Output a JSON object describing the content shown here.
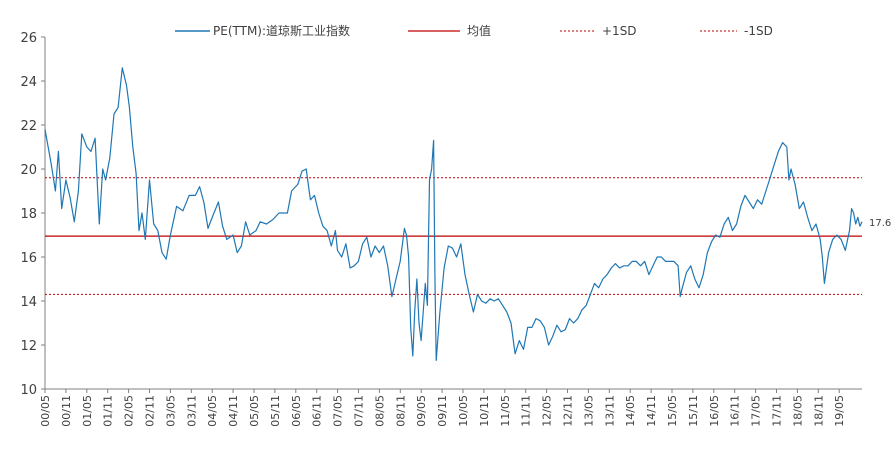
{
  "chart_data": {
    "type": "line",
    "title": "",
    "xlabel": "",
    "ylabel": "",
    "ylim": [
      10,
      26
    ],
    "yticks": [
      10,
      12,
      14,
      16,
      18,
      20,
      22,
      24,
      26
    ],
    "grid": false,
    "legend_position": "top",
    "colors": {
      "pe": "#1f77b4",
      "mean": "#c00000",
      "sd": "#c00000",
      "axis": "#808080",
      "text": "#404040"
    },
    "legend": [
      {
        "key": "pe",
        "label": "PE(TTM):道琼斯工业指数"
      },
      {
        "key": "mean",
        "label": "均值"
      },
      {
        "key": "plus_sd",
        "label": "+1SD"
      },
      {
        "key": "minus_sd",
        "label": "-1SD"
      }
    ],
    "x_ticks": [
      "00/05",
      "00/11",
      "01/05",
      "01/11",
      "02/05",
      "02/11",
      "03/05",
      "03/11",
      "04/05",
      "04/11",
      "05/05",
      "05/11",
      "06/05",
      "06/11",
      "07/05",
      "07/11",
      "08/05",
      "08/11",
      "09/05",
      "09/11",
      "10/05",
      "10/11",
      "11/05",
      "11/11",
      "12/05",
      "12/11",
      "13/05",
      "13/11",
      "14/05",
      "14/11",
      "15/05",
      "15/11",
      "16/05",
      "16/11",
      "17/05",
      "17/11",
      "18/05",
      "18/11",
      "19/05"
    ],
    "x_start": 2000.3,
    "x_end": 2019.85,
    "mean": 16.95,
    "plus_1sd": 19.6,
    "minus_1sd": 14.3,
    "last_value_label": "17.6",
    "series": [
      {
        "name": "PE(TTM):道琼斯工业指数",
        "points": [
          [
            2000.3,
            21.8
          ],
          [
            2000.45,
            20.2
          ],
          [
            2000.55,
            19.0
          ],
          [
            2000.62,
            20.8
          ],
          [
            2000.7,
            18.2
          ],
          [
            2000.8,
            19.5
          ],
          [
            2000.9,
            18.7
          ],
          [
            2001.0,
            17.6
          ],
          [
            2001.1,
            19.0
          ],
          [
            2001.18,
            21.6
          ],
          [
            2001.3,
            21.0
          ],
          [
            2001.4,
            20.8
          ],
          [
            2001.5,
            21.4
          ],
          [
            2001.6,
            17.5
          ],
          [
            2001.68,
            20.0
          ],
          [
            2001.75,
            19.5
          ],
          [
            2001.85,
            20.5
          ],
          [
            2001.95,
            22.5
          ],
          [
            2002.05,
            22.8
          ],
          [
            2002.15,
            24.6
          ],
          [
            2002.25,
            23.8
          ],
          [
            2002.32,
            22.8
          ],
          [
            2002.4,
            21.0
          ],
          [
            2002.48,
            19.8
          ],
          [
            2002.55,
            17.2
          ],
          [
            2002.62,
            18.0
          ],
          [
            2002.7,
            16.8
          ],
          [
            2002.8,
            19.5
          ],
          [
            2002.9,
            17.5
          ],
          [
            2003.0,
            17.2
          ],
          [
            2003.1,
            16.2
          ],
          [
            2003.2,
            15.9
          ],
          [
            2003.3,
            17.0
          ],
          [
            2003.45,
            18.3
          ],
          [
            2003.6,
            18.1
          ],
          [
            2003.75,
            18.8
          ],
          [
            2003.9,
            18.8
          ],
          [
            2004.0,
            19.2
          ],
          [
            2004.1,
            18.5
          ],
          [
            2004.2,
            17.3
          ],
          [
            2004.3,
            17.8
          ],
          [
            2004.45,
            18.5
          ],
          [
            2004.55,
            17.4
          ],
          [
            2004.65,
            16.8
          ],
          [
            2004.8,
            17.0
          ],
          [
            2004.9,
            16.2
          ],
          [
            2005.0,
            16.5
          ],
          [
            2005.1,
            17.6
          ],
          [
            2005.2,
            17.0
          ],
          [
            2005.35,
            17.2
          ],
          [
            2005.45,
            17.6
          ],
          [
            2005.6,
            17.5
          ],
          [
            2005.75,
            17.7
          ],
          [
            2005.9,
            18.0
          ],
          [
            2006.0,
            18.0
          ],
          [
            2006.1,
            18.0
          ],
          [
            2006.2,
            19.0
          ],
          [
            2006.35,
            19.3
          ],
          [
            2006.45,
            19.9
          ],
          [
            2006.55,
            20.0
          ],
          [
            2006.65,
            18.6
          ],
          [
            2006.75,
            18.8
          ],
          [
            2006.85,
            18.0
          ],
          [
            2006.95,
            17.4
          ],
          [
            2007.05,
            17.2
          ],
          [
            2007.15,
            16.5
          ],
          [
            2007.25,
            17.2
          ],
          [
            2007.3,
            16.3
          ],
          [
            2007.4,
            16.0
          ],
          [
            2007.5,
            16.6
          ],
          [
            2007.6,
            15.5
          ],
          [
            2007.7,
            15.6
          ],
          [
            2007.8,
            15.8
          ],
          [
            2007.9,
            16.6
          ],
          [
            2008.0,
            16.9
          ],
          [
            2008.1,
            16.0
          ],
          [
            2008.2,
            16.5
          ],
          [
            2008.3,
            16.2
          ],
          [
            2008.4,
            16.5
          ],
          [
            2008.5,
            15.6
          ],
          [
            2008.6,
            14.2
          ],
          [
            2008.7,
            15.0
          ],
          [
            2008.8,
            15.8
          ],
          [
            2008.9,
            17.3
          ],
          [
            2008.95,
            17.0
          ],
          [
            2009.0,
            16.0
          ],
          [
            2009.05,
            12.8
          ],
          [
            2009.1,
            11.5
          ],
          [
            2009.15,
            13.6
          ],
          [
            2009.2,
            15.0
          ],
          [
            2009.25,
            13.0
          ],
          [
            2009.3,
            12.2
          ],
          [
            2009.35,
            13.5
          ],
          [
            2009.4,
            14.8
          ],
          [
            2009.45,
            13.8
          ],
          [
            2009.5,
            19.5
          ],
          [
            2009.55,
            20.0
          ],
          [
            2009.6,
            21.3
          ],
          [
            2009.63,
            15.2
          ],
          [
            2009.66,
            11.3
          ],
          [
            2009.75,
            13.5
          ],
          [
            2009.85,
            15.5
          ],
          [
            2009.95,
            16.5
          ],
          [
            2010.05,
            16.4
          ],
          [
            2010.15,
            16.0
          ],
          [
            2010.25,
            16.6
          ],
          [
            2010.35,
            15.2
          ],
          [
            2010.45,
            14.3
          ],
          [
            2010.55,
            13.5
          ],
          [
            2010.65,
            14.3
          ],
          [
            2010.75,
            14.0
          ],
          [
            2010.85,
            13.9
          ],
          [
            2010.95,
            14.1
          ],
          [
            2011.05,
            14.0
          ],
          [
            2011.15,
            14.1
          ],
          [
            2011.25,
            13.8
          ],
          [
            2011.35,
            13.5
          ],
          [
            2011.45,
            13.0
          ],
          [
            2011.55,
            11.6
          ],
          [
            2011.65,
            12.2
          ],
          [
            2011.75,
            11.8
          ],
          [
            2011.85,
            12.8
          ],
          [
            2011.95,
            12.8
          ],
          [
            2012.05,
            13.2
          ],
          [
            2012.15,
            13.1
          ],
          [
            2012.25,
            12.8
          ],
          [
            2012.35,
            12.0
          ],
          [
            2012.45,
            12.4
          ],
          [
            2012.55,
            12.9
          ],
          [
            2012.65,
            12.6
          ],
          [
            2012.75,
            12.7
          ],
          [
            2012.85,
            13.2
          ],
          [
            2012.95,
            13.0
          ],
          [
            2013.05,
            13.2
          ],
          [
            2013.15,
            13.6
          ],
          [
            2013.25,
            13.8
          ],
          [
            2013.35,
            14.3
          ],
          [
            2013.45,
            14.8
          ],
          [
            2013.55,
            14.6
          ],
          [
            2013.65,
            15.0
          ],
          [
            2013.75,
            15.2
          ],
          [
            2013.85,
            15.5
          ],
          [
            2013.95,
            15.7
          ],
          [
            2014.05,
            15.5
          ],
          [
            2014.15,
            15.6
          ],
          [
            2014.25,
            15.6
          ],
          [
            2014.35,
            15.8
          ],
          [
            2014.45,
            15.8
          ],
          [
            2014.55,
            15.6
          ],
          [
            2014.65,
            15.8
          ],
          [
            2014.75,
            15.2
          ],
          [
            2014.85,
            15.6
          ],
          [
            2014.95,
            16.0
          ],
          [
            2015.05,
            16.0
          ],
          [
            2015.15,
            15.8
          ],
          [
            2015.25,
            15.8
          ],
          [
            2015.35,
            15.8
          ],
          [
            2015.45,
            15.6
          ],
          [
            2015.5,
            14.2
          ],
          [
            2015.55,
            14.6
          ],
          [
            2015.65,
            15.3
          ],
          [
            2015.75,
            15.6
          ],
          [
            2015.85,
            15.0
          ],
          [
            2015.95,
            14.6
          ],
          [
            2016.05,
            15.2
          ],
          [
            2016.15,
            16.2
          ],
          [
            2016.25,
            16.7
          ],
          [
            2016.35,
            17.0
          ],
          [
            2016.45,
            16.9
          ],
          [
            2016.55,
            17.5
          ],
          [
            2016.65,
            17.8
          ],
          [
            2016.75,
            17.2
          ],
          [
            2016.85,
            17.5
          ],
          [
            2016.95,
            18.3
          ],
          [
            2017.05,
            18.8
          ],
          [
            2017.15,
            18.5
          ],
          [
            2017.25,
            18.2
          ],
          [
            2017.35,
            18.6
          ],
          [
            2017.45,
            18.4
          ],
          [
            2017.55,
            19.0
          ],
          [
            2017.65,
            19.6
          ],
          [
            2017.75,
            20.2
          ],
          [
            2017.85,
            20.8
          ],
          [
            2017.95,
            21.2
          ],
          [
            2018.05,
            21.0
          ],
          [
            2018.1,
            19.5
          ],
          [
            2018.15,
            20.0
          ],
          [
            2018.25,
            19.3
          ],
          [
            2018.35,
            18.2
          ],
          [
            2018.45,
            18.5
          ],
          [
            2018.55,
            17.8
          ],
          [
            2018.65,
            17.2
          ],
          [
            2018.75,
            17.5
          ],
          [
            2018.85,
            16.8
          ],
          [
            2018.9,
            16.0
          ],
          [
            2018.95,
            14.8
          ],
          [
            2019.0,
            15.5
          ],
          [
            2019.05,
            16.2
          ],
          [
            2019.15,
            16.8
          ],
          [
            2019.25,
            17.0
          ],
          [
            2019.35,
            16.8
          ],
          [
            2019.45,
            16.3
          ],
          [
            2019.55,
            17.2
          ],
          [
            2019.6,
            18.2
          ],
          [
            2019.65,
            18.0
          ],
          [
            2019.7,
            17.5
          ],
          [
            2019.75,
            17.8
          ],
          [
            2019.8,
            17.4
          ],
          [
            2019.85,
            17.6
          ]
        ]
      }
    ]
  }
}
